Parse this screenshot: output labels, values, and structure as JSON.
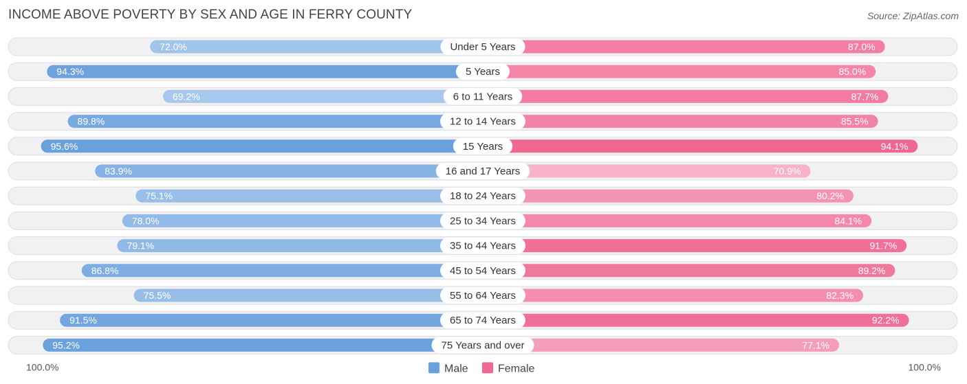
{
  "title": "INCOME ABOVE POVERTY BY SEX AND AGE IN FERRY COUNTY",
  "source": "Source: ZipAtlas.com",
  "colors": {
    "male": "#6aa0dc",
    "male_light": "#a7c8ec",
    "female": "#f06892",
    "female_light": "#f7b2c8",
    "track": "#f1f1f3",
    "track_border": "#dedee2"
  },
  "chart_data": {
    "type": "bar",
    "orientation": "horizontal-diverging",
    "title": "INCOME ABOVE POVERTY BY SEX AND AGE IN FERRY COUNTY",
    "categories": [
      "Under 5 Years",
      "5 Years",
      "6 to 11 Years",
      "12 to 14 Years",
      "15 Years",
      "16 and 17 Years",
      "18 to 24 Years",
      "25 to 34 Years",
      "35 to 44 Years",
      "45 to 54 Years",
      "55 to 64 Years",
      "65 to 74 Years",
      "75 Years and over"
    ],
    "series": [
      {
        "name": "Male",
        "values": [
          72.0,
          94.3,
          69.2,
          89.8,
          95.6,
          83.9,
          75.1,
          78.0,
          79.1,
          86.8,
          75.5,
          91.5,
          95.2
        ],
        "labels": [
          "72.0%",
          "94.3%",
          "69.2%",
          "89.8%",
          "95.6%",
          "83.9%",
          "75.1%",
          "78.0%",
          "79.1%",
          "86.8%",
          "75.5%",
          "91.5%",
          "95.2%"
        ]
      },
      {
        "name": "Female",
        "values": [
          87.0,
          85.0,
          87.7,
          85.5,
          94.1,
          70.9,
          80.2,
          84.1,
          91.7,
          89.2,
          82.3,
          92.2,
          77.1
        ],
        "labels": [
          "87.0%",
          "85.0%",
          "87.7%",
          "85.5%",
          "94.1%",
          "70.9%",
          "80.2%",
          "84.1%",
          "91.7%",
          "89.2%",
          "82.3%",
          "92.2%",
          "77.1%"
        ]
      }
    ],
    "xlim": [
      0,
      100
    ],
    "axis_left_label": "100.0%",
    "axis_right_label": "100.0%",
    "legend": [
      "Male",
      "Female"
    ],
    "legend_position": "bottom-center"
  }
}
